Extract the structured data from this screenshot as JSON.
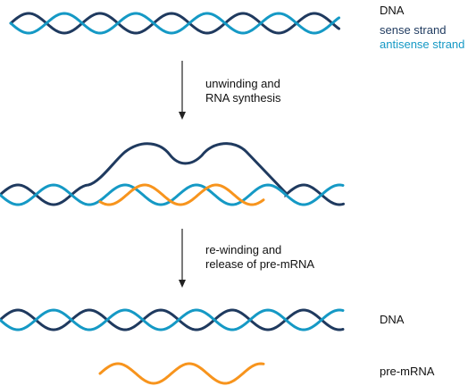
{
  "colors": {
    "sense": "#1f3a5f",
    "antisense": "#1599c5",
    "rna": "#f7941d",
    "arrow": "#222222",
    "text": "#111111"
  },
  "stage1": {
    "title": "DNA",
    "sense_label": "sense strand",
    "antisense_label": "antisense strand"
  },
  "step1": {
    "line1": "unwinding and",
    "line2": "RNA synthesis"
  },
  "step2": {
    "line1": "re-winding and",
    "line2": "release of pre-mRNA"
  },
  "stage3": {
    "dna_label": "DNA",
    "rna_label": "pre-mRNA"
  }
}
